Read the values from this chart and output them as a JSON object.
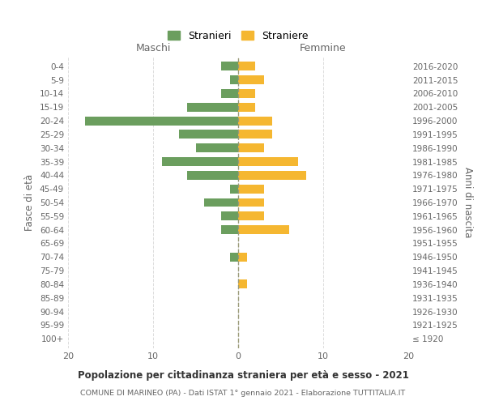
{
  "age_groups": [
    "100+",
    "95-99",
    "90-94",
    "85-89",
    "80-84",
    "75-79",
    "70-74",
    "65-69",
    "60-64",
    "55-59",
    "50-54",
    "45-49",
    "40-44",
    "35-39",
    "30-34",
    "25-29",
    "20-24",
    "15-19",
    "10-14",
    "5-9",
    "0-4"
  ],
  "birth_years": [
    "≤ 1920",
    "1921-1925",
    "1926-1930",
    "1931-1935",
    "1936-1940",
    "1941-1945",
    "1946-1950",
    "1951-1955",
    "1956-1960",
    "1961-1965",
    "1966-1970",
    "1971-1975",
    "1976-1980",
    "1981-1985",
    "1986-1990",
    "1991-1995",
    "1996-2000",
    "2001-2005",
    "2006-2010",
    "2011-2015",
    "2016-2020"
  ],
  "males": [
    0,
    0,
    0,
    0,
    0,
    0,
    1,
    0,
    2,
    2,
    4,
    1,
    6,
    9,
    5,
    7,
    18,
    6,
    2,
    1,
    2
  ],
  "females": [
    0,
    0,
    0,
    0,
    1,
    0,
    1,
    0,
    6,
    3,
    3,
    3,
    8,
    7,
    3,
    4,
    4,
    2,
    2,
    3,
    2
  ],
  "male_color": "#6b9e5e",
  "female_color": "#f5b731",
  "title": "Popolazione per cittadinanza straniera per età e sesso - 2021",
  "subtitle": "COMUNE DI MARINEO (PA) - Dati ISTAT 1° gennaio 2021 - Elaborazione TUTTITALIA.IT",
  "left_label": "Maschi",
  "right_label": "Femmine",
  "ylabel_left": "Fasce di età",
  "ylabel_right": "Anni di nascita",
  "legend_stranieri": "Stranieri",
  "legend_straniere": "Straniere",
  "xlim": 20,
  "background_color": "#ffffff",
  "grid_color": "#dddddd",
  "text_color": "#666666"
}
